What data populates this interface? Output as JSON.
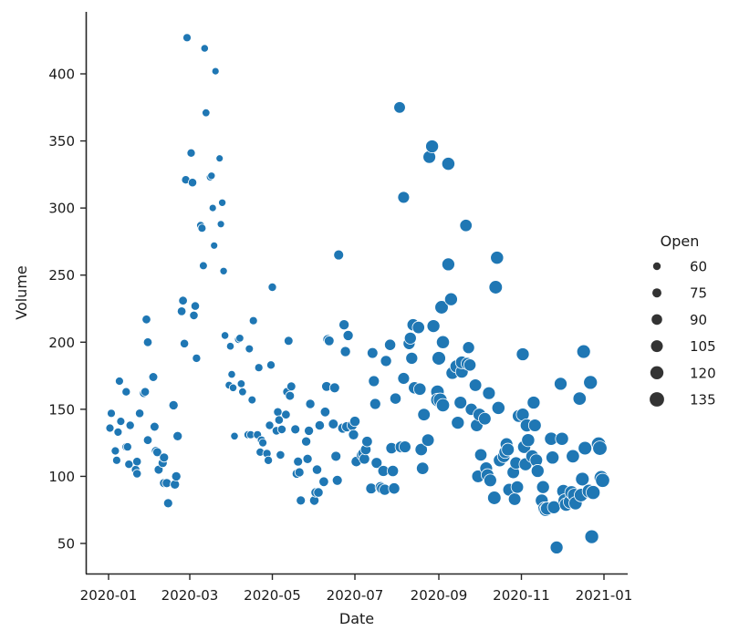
{
  "chart_data": {
    "type": "scatter",
    "title": "",
    "xlabel": "Date",
    "ylabel": "Volume",
    "x_ticks": [
      "2020-01",
      "2020-03",
      "2020-05",
      "2020-07",
      "2020-09",
      "2020-11",
      "2021-01"
    ],
    "y_ticks": [
      50,
      100,
      150,
      200,
      250,
      300,
      350,
      400
    ],
    "xlim": [
      "2019-12-13",
      "2021-01-18"
    ],
    "ylim": [
      28,
      445
    ],
    "grid": false,
    "marker_color": "#1f77b4",
    "size_variable": "Open",
    "legend": {
      "title": "Open",
      "position": "right",
      "entries": [
        {
          "label": "60",
          "radius": 4.2
        },
        {
          "label": "75",
          "radius": 5.0
        },
        {
          "label": "90",
          "radius": 5.8
        },
        {
          "label": "105",
          "radius": 6.5
        },
        {
          "label": "120",
          "radius": 7.2
        },
        {
          "label": "135",
          "radius": 7.9
        }
      ]
    },
    "points": [
      [
        "2020-01-02",
        136,
        66
      ],
      [
        "2020-01-03",
        147,
        66
      ],
      [
        "2020-01-06",
        119,
        66
      ],
      [
        "2020-01-07",
        112,
        66
      ],
      [
        "2020-01-08",
        133,
        66
      ],
      [
        "2020-01-09",
        171,
        66
      ],
      [
        "2020-01-10",
        141,
        66
      ],
      [
        "2020-01-14",
        163,
        68
      ],
      [
        "2020-01-14",
        122,
        68
      ],
      [
        "2020-01-15",
        122,
        68
      ],
      [
        "2020-01-16",
        109,
        68
      ],
      [
        "2020-01-17",
        138,
        68
      ],
      [
        "2020-01-21",
        105,
        70
      ],
      [
        "2020-01-22",
        102,
        70
      ],
      [
        "2020-01-22",
        111,
        70
      ],
      [
        "2020-01-24",
        147,
        70
      ],
      [
        "2020-01-27",
        162,
        70
      ],
      [
        "2020-01-28",
        163,
        70
      ],
      [
        "2020-01-29",
        217,
        72
      ],
      [
        "2020-01-30",
        200,
        72
      ],
      [
        "2020-01-30",
        127,
        72
      ],
      [
        "2020-02-03",
        174,
        74
      ],
      [
        "2020-02-04",
        137,
        74
      ],
      [
        "2020-02-05",
        119,
        74
      ],
      [
        "2020-02-06",
        118,
        74
      ],
      [
        "2020-02-07",
        105,
        74
      ],
      [
        "2020-02-10",
        110,
        76
      ],
      [
        "2020-02-11",
        114,
        76
      ],
      [
        "2020-02-11",
        95,
        76
      ],
      [
        "2020-02-13",
        95,
        76
      ],
      [
        "2020-02-14",
        80,
        76
      ],
      [
        "2020-02-18",
        153,
        78
      ],
      [
        "2020-02-19",
        94,
        78
      ],
      [
        "2020-02-20",
        100,
        78
      ],
      [
        "2020-02-21",
        130,
        78
      ],
      [
        "2020-02-24",
        223,
        72
      ],
      [
        "2020-02-25",
        231,
        72
      ],
      [
        "2020-02-26",
        199,
        70
      ],
      [
        "2020-02-27",
        321,
        68
      ],
      [
        "2020-02-28",
        427,
        66
      ],
      [
        "2020-03-02",
        341,
        68
      ],
      [
        "2020-03-03",
        319,
        70
      ],
      [
        "2020-03-04",
        220,
        70
      ],
      [
        "2020-03-05",
        227,
        70
      ],
      [
        "2020-03-06",
        188,
        68
      ],
      [
        "2020-03-09",
        287,
        64
      ],
      [
        "2020-03-10",
        285,
        65
      ],
      [
        "2020-03-11",
        257,
        64
      ],
      [
        "2020-03-12",
        419,
        60
      ],
      [
        "2020-03-13",
        371,
        62
      ],
      [
        "2020-03-16",
        323,
        58
      ],
      [
        "2020-03-17",
        324,
        58
      ],
      [
        "2020-03-18",
        300,
        56
      ],
      [
        "2020-03-19",
        272,
        56
      ],
      [
        "2020-03-20",
        402,
        56
      ],
      [
        "2020-03-23",
        337,
        55
      ],
      [
        "2020-03-24",
        288,
        56
      ],
      [
        "2020-03-25",
        304,
        58
      ],
      [
        "2020-03-26",
        253,
        58
      ],
      [
        "2020-03-27",
        205,
        60
      ],
      [
        "2020-03-30",
        168,
        60
      ],
      [
        "2020-03-31",
        197,
        60
      ],
      [
        "2020-04-01",
        176,
        60
      ],
      [
        "2020-04-02",
        166,
        60
      ],
      [
        "2020-04-03",
        130,
        60
      ],
      [
        "2020-04-06",
        202,
        62
      ],
      [
        "2020-04-07",
        203,
        62
      ],
      [
        "2020-04-08",
        169,
        62
      ],
      [
        "2020-04-09",
        163,
        62
      ],
      [
        "2020-04-13",
        131,
        64
      ],
      [
        "2020-04-14",
        195,
        64
      ],
      [
        "2020-04-15",
        131,
        64
      ],
      [
        "2020-04-16",
        157,
        64
      ],
      [
        "2020-04-17",
        216,
        66
      ],
      [
        "2020-04-20",
        131,
        66
      ],
      [
        "2020-04-21",
        181,
        66
      ],
      [
        "2020-04-22",
        118,
        66
      ],
      [
        "2020-04-23",
        127,
        66
      ],
      [
        "2020-04-24",
        125,
        66
      ],
      [
        "2020-04-27",
        117,
        68
      ],
      [
        "2020-04-28",
        112,
        68
      ],
      [
        "2020-04-29",
        138,
        68
      ],
      [
        "2020-04-30",
        183,
        68
      ],
      [
        "2020-05-01",
        241,
        68
      ],
      [
        "2020-05-04",
        134,
        70
      ],
      [
        "2020-05-05",
        148,
        70
      ],
      [
        "2020-05-06",
        142,
        70
      ],
      [
        "2020-05-07",
        116,
        70
      ],
      [
        "2020-05-08",
        135,
        70
      ],
      [
        "2020-05-11",
        146,
        72
      ],
      [
        "2020-05-12",
        163,
        74
      ],
      [
        "2020-05-13",
        201,
        74
      ],
      [
        "2020-05-14",
        160,
        74
      ],
      [
        "2020-05-15",
        167,
        74
      ],
      [
        "2020-05-18",
        135,
        76
      ],
      [
        "2020-05-19",
        102,
        76
      ],
      [
        "2020-05-20",
        111,
        76
      ],
      [
        "2020-05-21",
        103,
        76
      ],
      [
        "2020-05-22",
        82,
        76
      ],
      [
        "2020-05-26",
        126,
        78
      ],
      [
        "2020-05-27",
        113,
        78
      ],
      [
        "2020-05-28",
        134,
        78
      ],
      [
        "2020-05-29",
        154,
        78
      ],
      [
        "2020-06-01",
        82,
        80
      ],
      [
        "2020-06-02",
        88,
        80
      ],
      [
        "2020-06-03",
        105,
        80
      ],
      [
        "2020-06-04",
        88,
        80
      ],
      [
        "2020-06-05",
        138,
        80
      ],
      [
        "2020-06-08",
        96,
        82
      ],
      [
        "2020-06-09",
        148,
        82
      ],
      [
        "2020-06-10",
        167,
        84
      ],
      [
        "2020-06-11",
        202,
        84
      ],
      [
        "2020-06-12",
        201,
        84
      ],
      [
        "2020-06-15",
        139,
        84
      ],
      [
        "2020-06-16",
        166,
        86
      ],
      [
        "2020-06-17",
        115,
        86
      ],
      [
        "2020-06-18",
        97,
        86
      ],
      [
        "2020-06-19",
        265,
        86
      ],
      [
        "2020-06-22",
        136,
        88
      ],
      [
        "2020-06-23",
        213,
        88
      ],
      [
        "2020-06-24",
        193,
        88
      ],
      [
        "2020-06-25",
        137,
        88
      ],
      [
        "2020-06-26",
        205,
        88
      ],
      [
        "2020-06-29",
        138,
        88
      ],
      [
        "2020-06-30",
        131,
        88
      ],
      [
        "2020-07-01",
        141,
        90
      ],
      [
        "2020-07-02",
        111,
        90
      ],
      [
        "2020-07-06",
        116,
        92
      ],
      [
        "2020-07-07",
        117,
        92
      ],
      [
        "2020-07-08",
        113,
        92
      ],
      [
        "2020-07-09",
        120,
        92
      ],
      [
        "2020-07-10",
        126,
        92
      ],
      [
        "2020-07-13",
        91,
        94
      ],
      [
        "2020-07-14",
        192,
        94
      ],
      [
        "2020-07-15",
        171,
        96
      ],
      [
        "2020-07-16",
        154,
        96
      ],
      [
        "2020-07-17",
        110,
        96
      ],
      [
        "2020-07-20",
        92,
        96
      ],
      [
        "2020-07-21",
        91,
        96
      ],
      [
        "2020-07-22",
        104,
        98
      ],
      [
        "2020-07-23",
        90,
        98
      ],
      [
        "2020-07-24",
        186,
        98
      ],
      [
        "2020-07-27",
        198,
        100
      ],
      [
        "2020-07-28",
        121,
        100
      ],
      [
        "2020-07-29",
        104,
        100
      ],
      [
        "2020-07-30",
        91,
        100
      ],
      [
        "2020-07-31",
        158,
        100
      ],
      [
        "2020-08-03",
        375,
        104
      ],
      [
        "2020-08-04",
        122,
        104
      ],
      [
        "2020-08-06",
        173,
        106
      ],
      [
        "2020-08-06",
        308,
        106
      ],
      [
        "2020-08-07",
        122,
        106
      ],
      [
        "2020-08-10",
        199,
        108
      ],
      [
        "2020-08-11",
        203,
        108
      ],
      [
        "2020-08-12",
        188,
        108
      ],
      [
        "2020-08-13",
        213,
        110
      ],
      [
        "2020-08-14",
        166,
        110
      ],
      [
        "2020-08-17",
        211,
        112
      ],
      [
        "2020-08-18",
        165,
        112
      ],
      [
        "2020-08-19",
        120,
        112
      ],
      [
        "2020-08-20",
        106,
        112
      ],
      [
        "2020-08-21",
        146,
        114
      ],
      [
        "2020-08-24",
        127,
        114
      ],
      [
        "2020-08-25",
        338,
        116
      ],
      [
        "2020-08-27",
        346,
        118
      ],
      [
        "2020-08-28",
        212,
        118
      ],
      [
        "2020-08-31",
        163,
        124
      ],
      [
        "2020-08-31",
        157,
        124
      ],
      [
        "2020-09-01",
        188,
        126
      ],
      [
        "2020-09-02",
        157,
        128
      ],
      [
        "2020-09-03",
        226,
        124
      ],
      [
        "2020-09-04",
        153,
        122
      ],
      [
        "2020-09-04",
        200,
        120
      ],
      [
        "2020-09-08",
        258,
        118
      ],
      [
        "2020-09-08",
        333,
        120
      ],
      [
        "2020-09-10",
        232,
        118
      ],
      [
        "2020-09-11",
        177,
        116
      ],
      [
        "2020-09-14",
        182,
        118
      ],
      [
        "2020-09-15",
        140,
        118
      ],
      [
        "2020-09-17",
        155,
        116
      ],
      [
        "2020-09-18",
        178,
        116
      ],
      [
        "2020-09-18",
        185,
        116
      ],
      [
        "2020-09-21",
        287,
        112
      ],
      [
        "2020-09-22",
        184,
        112
      ],
      [
        "2020-09-23",
        196,
        108
      ],
      [
        "2020-09-24",
        183,
        110
      ],
      [
        "2020-09-25",
        150,
        110
      ],
      [
        "2020-09-28",
        168,
        114
      ],
      [
        "2020-09-29",
        138,
        114
      ],
      [
        "2020-09-30",
        100,
        116
      ],
      [
        "2020-10-01",
        146,
        116
      ],
      [
        "2020-10-02",
        116,
        112
      ],
      [
        "2020-10-05",
        143,
        114
      ],
      [
        "2020-10-06",
        106,
        116
      ],
      [
        "2020-10-07",
        101,
        116
      ],
      [
        "2020-10-08",
        162,
        116
      ],
      [
        "2020-10-09",
        97,
        116
      ],
      [
        "2020-10-12",
        84,
        124
      ],
      [
        "2020-10-13",
        241,
        124
      ],
      [
        "2020-10-14",
        263,
        120
      ],
      [
        "2020-10-15",
        151,
        120
      ],
      [
        "2020-10-16",
        112,
        118
      ],
      [
        "2020-10-19",
        115,
        116
      ],
      [
        "2020-10-20",
        118,
        114
      ],
      [
        "2020-10-21",
        124,
        116
      ],
      [
        "2020-10-22",
        120,
        116
      ],
      [
        "2020-10-23",
        90,
        116
      ],
      [
        "2020-10-26",
        103,
        114
      ],
      [
        "2020-10-27",
        83,
        114
      ],
      [
        "2020-10-28",
        110,
        112
      ],
      [
        "2020-10-29",
        92,
        114
      ],
      [
        "2020-10-30",
        145,
        116
      ],
      [
        "2020-11-02",
        146,
        118
      ],
      [
        "2020-11-02",
        191,
        118
      ],
      [
        "2020-11-03",
        122,
        120
      ],
      [
        "2020-11-04",
        109,
        118
      ],
      [
        "2020-11-05",
        138,
        120
      ],
      [
        "2020-11-06",
        127,
        120
      ],
      [
        "2020-11-09",
        115,
        118
      ],
      [
        "2020-11-10",
        155,
        118
      ],
      [
        "2020-11-11",
        138,
        116
      ],
      [
        "2020-11-12",
        112,
        116
      ],
      [
        "2020-11-13",
        104,
        118
      ],
      [
        "2020-11-16",
        82,
        118
      ],
      [
        "2020-11-17",
        92,
        118
      ],
      [
        "2020-11-18",
        76,
        120
      ],
      [
        "2020-11-19",
        75,
        122
      ],
      [
        "2020-11-20",
        76,
        122
      ],
      [
        "2020-11-23",
        128,
        122
      ],
      [
        "2020-11-24",
        114,
        120
      ],
      [
        "2020-11-25",
        77,
        118
      ],
      [
        "2020-11-27",
        47,
        118
      ],
      [
        "2020-11-30",
        169,
        118
      ],
      [
        "2020-12-01",
        128,
        120
      ],
      [
        "2020-12-02",
        89,
        122
      ],
      [
        "2020-12-03",
        82,
        124
      ],
      [
        "2020-12-04",
        79,
        124
      ],
      [
        "2020-12-07",
        81,
        126
      ],
      [
        "2020-12-08",
        88,
        124
      ],
      [
        "2020-12-09",
        115,
        122
      ],
      [
        "2020-12-10",
        86,
        124
      ],
      [
        "2020-12-11",
        80,
        122
      ],
      [
        "2020-12-14",
        158,
        122
      ],
      [
        "2020-12-15",
        86,
        124
      ],
      [
        "2020-12-16",
        98,
        126
      ],
      [
        "2020-12-17",
        193,
        126
      ],
      [
        "2020-12-18",
        121,
        126
      ],
      [
        "2020-12-21",
        89,
        128
      ],
      [
        "2020-12-22",
        170,
        128
      ],
      [
        "2020-12-23",
        55,
        128
      ],
      [
        "2020-12-24",
        88,
        130
      ],
      [
        "2020-12-28",
        124,
        134
      ],
      [
        "2020-12-29",
        121,
        134
      ],
      [
        "2020-12-30",
        99,
        132
      ],
      [
        "2020-12-31",
        97,
        132
      ]
    ]
  }
}
